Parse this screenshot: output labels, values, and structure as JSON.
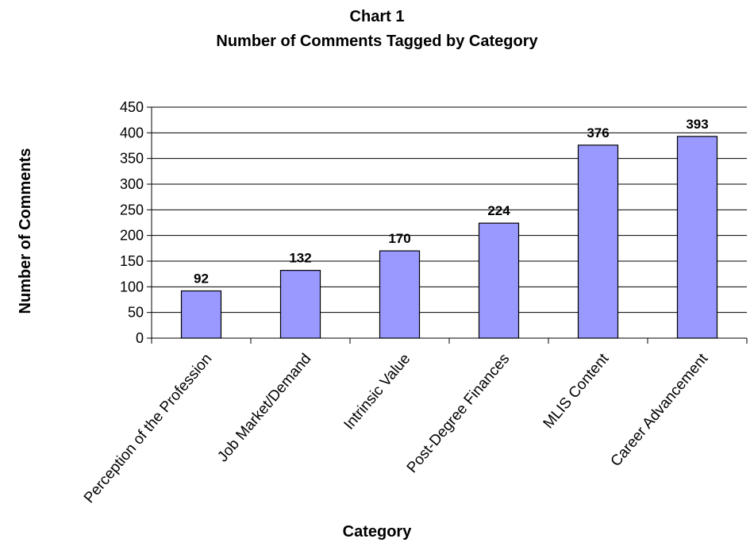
{
  "chart_data": {
    "type": "bar",
    "title": "Chart 1",
    "subtitle": "Number of Comments Tagged by Category",
    "xlabel": "Category",
    "ylabel": "Number of Comments",
    "categories": [
      "Perception of the Profession",
      "Job Market/Demand",
      "Intrinsic Value",
      "Post-Degree Finances",
      "MLIS Content",
      "Career Advancement"
    ],
    "values": [
      92,
      132,
      170,
      224,
      376,
      393
    ],
    "data_labels": [
      "92",
      "132",
      "170",
      "224",
      "376",
      "393"
    ],
    "y_ticks": [
      "0",
      "50",
      "100",
      "150",
      "200",
      "250",
      "300",
      "350",
      "400",
      "450"
    ],
    "ylim": [
      0,
      450
    ],
    "y_step": 50,
    "grid": true,
    "legend": "none",
    "bar_color": "#9999ff",
    "bar_stroke": "#000000",
    "grid_color": "#000000"
  }
}
